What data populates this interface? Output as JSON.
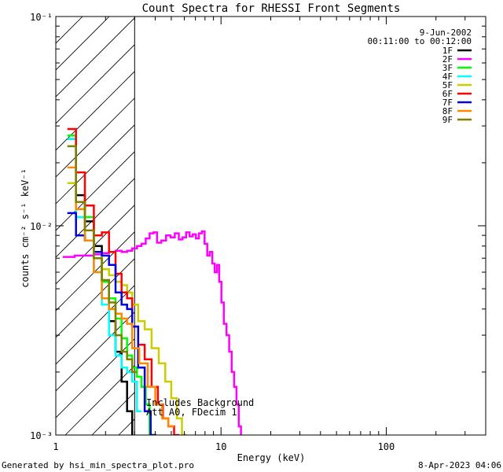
{
  "chart_data": {
    "type": "line",
    "title": "Count Spectra for RHESSI Front Segments",
    "xlabel": "Energy (keV)",
    "ylabel": "counts cm⁻² s⁻¹ keV⁻¹",
    "x_scale": "log",
    "y_scale": "log",
    "xlim": [
      1,
      400
    ],
    "ylim": [
      0.001,
      0.1
    ],
    "x_ticks": [
      {
        "value": 1,
        "label": "1"
      },
      {
        "value": 10,
        "label": "10"
      },
      {
        "value": 100,
        "label": "100"
      }
    ],
    "y_ticks": [
      {
        "value": 0.001,
        "label": "10⁻³"
      },
      {
        "value": 0.01,
        "label": "10⁻²"
      },
      {
        "value": 0.1,
        "label": "10⁻¹"
      }
    ],
    "hatched_region": {
      "x_from": 1,
      "x_to": 3
    },
    "legend_header": [
      "9-Jun-2002",
      "00:11:00 to 00:12:00"
    ],
    "annotations": [
      "Includes Background",
      "Att A0, FDecim 1"
    ],
    "footer_left": "Generated by hsi_min_spectra_plot.pro",
    "footer_right": "8-Apr-2023 04:06",
    "series": [
      {
        "name": "1F",
        "color": "#000000",
        "x": [
          1.25,
          1.4,
          1.6,
          1.8,
          2.0,
          2.2,
          2.4,
          2.6,
          2.8,
          3.0
        ],
        "y": [
          0.026,
          0.014,
          0.0105,
          0.008,
          0.0055,
          0.0035,
          0.0025,
          0.0018,
          0.0013,
          0.0009
        ]
      },
      {
        "name": "2F",
        "color": "#ff00ff",
        "x": [
          1.2,
          1.4,
          1.6,
          1.8,
          2.0,
          2.2,
          2.4,
          2.6,
          2.8,
          3.0,
          3.2,
          3.4,
          3.6,
          3.8,
          4.0,
          4.2,
          4.5,
          4.8,
          5.1,
          5.4,
          5.7,
          6.0,
          6.3,
          6.6,
          6.9,
          7.2,
          7.5,
          7.8,
          8.1,
          8.4,
          8.7,
          9.0,
          9.3,
          9.6,
          9.9,
          10.2,
          10.6,
          11.0,
          11.4,
          11.8,
          12.2,
          12.6,
          13.0,
          13.4
        ],
        "y": [
          0.0071,
          0.0072,
          0.0072,
          0.0073,
          0.0074,
          0.0075,
          0.0076,
          0.0075,
          0.0076,
          0.0078,
          0.008,
          0.0082,
          0.0087,
          0.0092,
          0.0093,
          0.0083,
          0.0085,
          0.009,
          0.0088,
          0.0092,
          0.0086,
          0.0088,
          0.0093,
          0.0089,
          0.0091,
          0.0087,
          0.0092,
          0.0094,
          0.0082,
          0.0072,
          0.0075,
          0.0066,
          0.006,
          0.0065,
          0.0054,
          0.0043,
          0.0034,
          0.003,
          0.0025,
          0.002,
          0.0017,
          0.0014,
          0.0011,
          0.0008
        ]
      },
      {
        "name": "3F",
        "color": "#00ff00",
        "x": [
          1.25,
          1.4,
          1.6,
          1.8,
          2.0,
          2.2,
          2.4,
          2.6,
          2.8,
          3.0,
          3.2,
          3.4,
          3.6,
          3.8
        ],
        "y": [
          0.027,
          0.013,
          0.011,
          0.0075,
          0.0054,
          0.0045,
          0.0036,
          0.0029,
          0.0024,
          0.0021,
          0.0019,
          0.0017,
          0.0014,
          0.001
        ]
      },
      {
        "name": "4F",
        "color": "#00ffff",
        "x": [
          1.25,
          1.4,
          1.6,
          1.8,
          2.0,
          2.2,
          2.4,
          2.6,
          2.8,
          3.0,
          3.2
        ],
        "y": [
          0.026,
          0.011,
          0.0085,
          0.006,
          0.0042,
          0.003,
          0.0024,
          0.0021,
          0.002,
          0.0018,
          0.0013
        ]
      },
      {
        "name": "5F",
        "color": "#cccc00",
        "x": [
          1.25,
          1.4,
          1.6,
          1.8,
          2.0,
          2.2,
          2.4,
          2.6,
          2.8,
          3.0,
          3.3,
          3.6,
          4.0,
          4.4,
          4.8,
          5.2,
          5.6,
          6.0
        ],
        "y": [
          0.016,
          0.012,
          0.0085,
          0.0075,
          0.0062,
          0.0058,
          0.0054,
          0.0052,
          0.0048,
          0.0042,
          0.0035,
          0.0032,
          0.0026,
          0.0022,
          0.0018,
          0.0015,
          0.0012,
          0.001
        ]
      },
      {
        "name": "6F",
        "color": "#ff0000",
        "x": [
          1.25,
          1.4,
          1.6,
          1.8,
          2.0,
          2.2,
          2.4,
          2.6,
          2.8,
          3.0,
          3.3,
          3.6,
          4.0,
          4.3,
          4.6,
          5.0,
          5.4
        ],
        "y": [
          0.029,
          0.018,
          0.0125,
          0.009,
          0.0093,
          0.0075,
          0.0059,
          0.0048,
          0.0045,
          0.0033,
          0.0027,
          0.0023,
          0.0017,
          0.0014,
          0.0012,
          0.0011,
          0.001
        ]
      },
      {
        "name": "7F",
        "color": "#0000dd",
        "x": [
          1.25,
          1.4,
          1.6,
          1.8,
          2.0,
          2.2,
          2.4,
          2.6,
          2.8,
          3.0,
          3.3,
          3.6,
          3.9
        ],
        "y": [
          0.0115,
          0.009,
          0.0085,
          0.0075,
          0.0072,
          0.0065,
          0.0048,
          0.0042,
          0.004,
          0.0033,
          0.0021,
          0.0013,
          0.001
        ]
      },
      {
        "name": "8F",
        "color": "#ff8800",
        "x": [
          1.25,
          1.4,
          1.6,
          1.8,
          2.0,
          2.2,
          2.4,
          2.6,
          2.8,
          3.0,
          3.4,
          3.8,
          4.2,
          4.6,
          5.0
        ],
        "y": [
          0.019,
          0.012,
          0.0085,
          0.006,
          0.0045,
          0.004,
          0.0038,
          0.0036,
          0.0034,
          0.0026,
          0.0022,
          0.0017,
          0.0014,
          0.0012,
          0.0011
        ]
      },
      {
        "name": "9F",
        "color": "#808000",
        "x": [
          1.25,
          1.4,
          1.6,
          1.8,
          2.0,
          2.2,
          2.4,
          2.6,
          2.8,
          3.0
        ],
        "y": [
          0.024,
          0.013,
          0.0095,
          0.007,
          0.0055,
          0.0043,
          0.003,
          0.0025,
          0.0023,
          0.002
        ]
      }
    ]
  }
}
